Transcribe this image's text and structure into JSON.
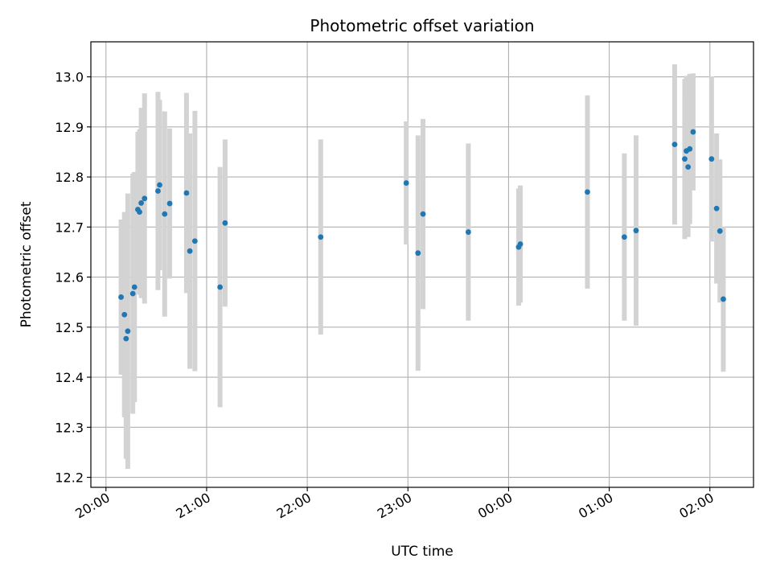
{
  "chart_data": {
    "type": "scatter",
    "title": "Photometric offset variation",
    "xlabel": "UTC time",
    "ylabel": "Photometric offset",
    "x_tick_labels": [
      "20:00",
      "21:00",
      "22:00",
      "23:00",
      "00:00",
      "01:00",
      "02:00"
    ],
    "x_ticks": [
      "20:00",
      "21:00",
      "22:00",
      "23:00",
      "00:00",
      "01:00",
      "02:00"
    ],
    "x_range": [
      "19:51",
      "02:26"
    ],
    "y_ticks": [
      12.2,
      12.3,
      12.4,
      12.5,
      12.6,
      12.7,
      12.8,
      12.9,
      13.0
    ],
    "y_tick_labels": [
      "12.2",
      "12.3",
      "12.4",
      "12.5",
      "12.6",
      "12.7",
      "12.8",
      "12.9",
      "13.0"
    ],
    "ylim": [
      12.18,
      13.07
    ],
    "grid": true,
    "point_color": "#1f77b4",
    "errorbar_color": "#d3d3d3",
    "points": [
      {
        "x": "20:09",
        "y": 12.56,
        "err": 0.155
      },
      {
        "x": "20:11",
        "y": 12.525,
        "err": 0.205
      },
      {
        "x": "20:12",
        "y": 12.477,
        "err": 0.24
      },
      {
        "x": "20:13",
        "y": 12.492,
        "err": 0.275
      },
      {
        "x": "20:16",
        "y": 12.567,
        "err": 0.24
      },
      {
        "x": "20:17",
        "y": 12.58,
        "err": 0.23
      },
      {
        "x": "20:19",
        "y": 12.735,
        "err": 0.155
      },
      {
        "x": "20:20",
        "y": 12.73,
        "err": 0.165
      },
      {
        "x": "20:21",
        "y": 12.748,
        "err": 0.19
      },
      {
        "x": "20:23",
        "y": 12.757,
        "err": 0.21
      },
      {
        "x": "20:31",
        "y": 12.772,
        "err": 0.198
      },
      {
        "x": "20:32",
        "y": 12.784,
        "err": 0.17
      },
      {
        "x": "20:35",
        "y": 12.726,
        "err": 0.205
      },
      {
        "x": "20:38",
        "y": 12.747,
        "err": 0.15
      },
      {
        "x": "20:48",
        "y": 12.768,
        "err": 0.2
      },
      {
        "x": "20:50",
        "y": 12.652,
        "err": 0.235
      },
      {
        "x": "20:53",
        "y": 12.672,
        "err": 0.26
      },
      {
        "x": "21:08",
        "y": 12.58,
        "err": 0.24
      },
      {
        "x": "21:11",
        "y": 12.708,
        "err": 0.167
      },
      {
        "x": "22:08",
        "y": 12.68,
        "err": 0.195
      },
      {
        "x": "22:59",
        "y": 12.788,
        "err": 0.123
      },
      {
        "x": "23:06",
        "y": 12.648,
        "err": 0.235
      },
      {
        "x": "23:09",
        "y": 12.726,
        "err": 0.19
      },
      {
        "x": "23:36",
        "y": 12.69,
        "err": 0.177
      },
      {
        "x": "00:06",
        "y": 12.66,
        "err": 0.117
      },
      {
        "x": "00:07",
        "y": 12.666,
        "err": 0.117
      },
      {
        "x": "00:47",
        "y": 12.77,
        "err": 0.193
      },
      {
        "x": "01:09",
        "y": 12.68,
        "err": 0.167
      },
      {
        "x": "01:16",
        "y": 12.693,
        "err": 0.19
      },
      {
        "x": "01:39",
        "y": 12.865,
        "err": 0.16
      },
      {
        "x": "01:45",
        "y": 12.836,
        "err": 0.16
      },
      {
        "x": "01:46",
        "y": 12.852,
        "err": 0.15
      },
      {
        "x": "01:47",
        "y": 12.82,
        "err": 0.14
      },
      {
        "x": "01:48",
        "y": 12.856,
        "err": 0.15
      },
      {
        "x": "01:50",
        "y": 12.89,
        "err": 0.117
      },
      {
        "x": "02:01",
        "y": 12.836,
        "err": 0.165
      },
      {
        "x": "02:04",
        "y": 12.737,
        "err": 0.15
      },
      {
        "x": "02:06",
        "y": 12.692,
        "err": 0.143
      },
      {
        "x": "02:08",
        "y": 12.556,
        "err": 0.145
      }
    ]
  }
}
